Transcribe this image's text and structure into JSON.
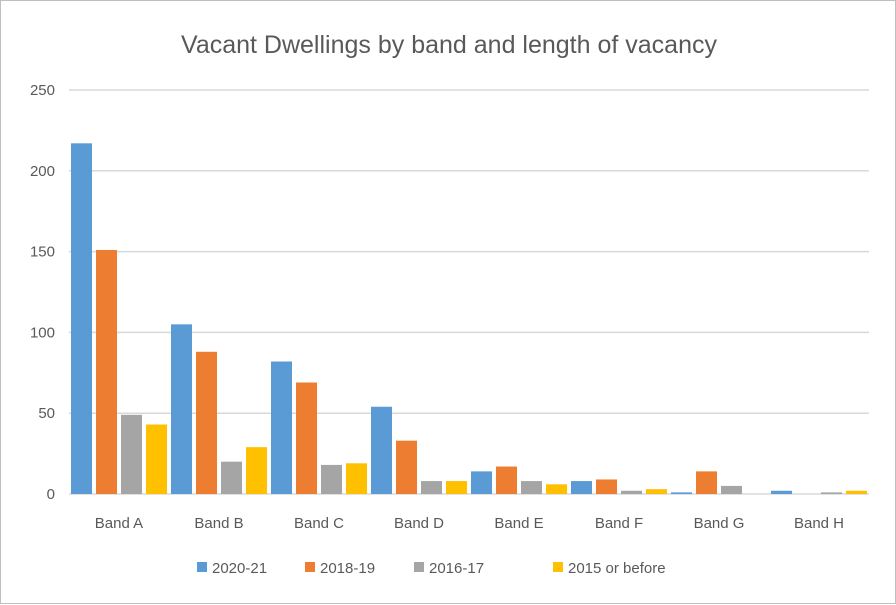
{
  "chart_data": {
    "type": "bar",
    "title": "Vacant Dwellings by band and length of vacancy",
    "xlabel": "",
    "ylabel": "",
    "ylim": [
      0,
      250
    ],
    "yticks": [
      0,
      50,
      100,
      150,
      200,
      250
    ],
    "grid": true,
    "legend_position": "bottom",
    "categories": [
      "Band A",
      "Band B",
      "Band C",
      "Band D",
      "Band E",
      "Band F",
      "Band G",
      "Band H"
    ],
    "series": [
      {
        "name": "2020-21",
        "color": "#5b9bd5",
        "values": [
          217,
          105,
          82,
          54,
          14,
          8,
          1,
          2
        ]
      },
      {
        "name": "2018-19",
        "color": "#ed7d31",
        "values": [
          151,
          88,
          69,
          33,
          17,
          9,
          14,
          0
        ]
      },
      {
        "name": "2016-17",
        "color": "#a5a5a5",
        "values": [
          49,
          20,
          18,
          8,
          8,
          2,
          5,
          1
        ]
      },
      {
        "name": "2015 or before",
        "color": "#ffc000",
        "values": [
          43,
          29,
          19,
          8,
          6,
          3,
          0,
          2
        ]
      }
    ]
  }
}
